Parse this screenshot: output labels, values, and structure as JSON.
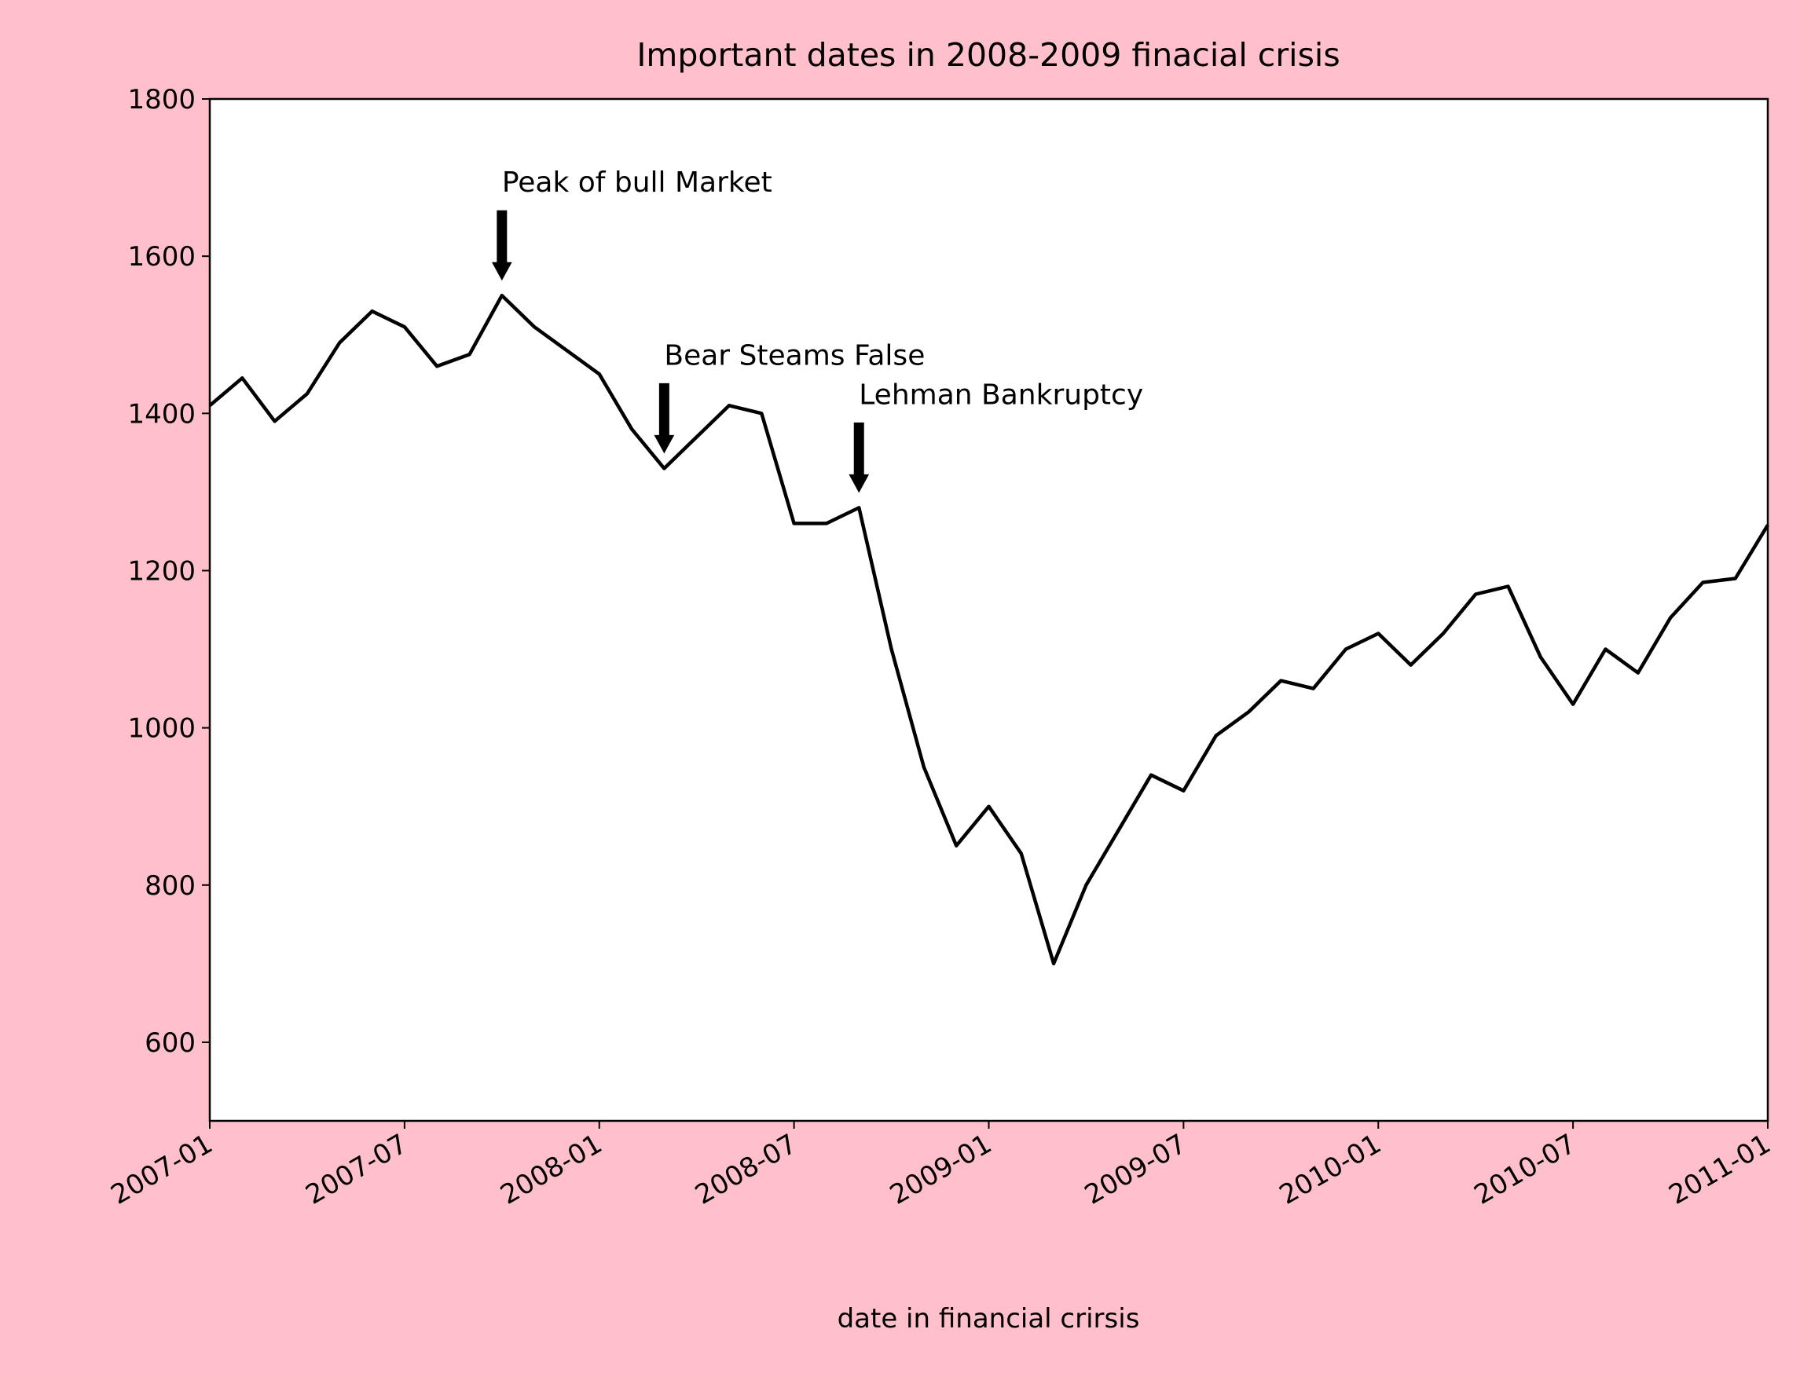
{
  "chart_data": {
    "type": "line",
    "title": "Important dates in 2008-2009 finacial crisis",
    "x_label": "date in financial crirsis",
    "x": [
      "2007-01",
      "2007-02",
      "2007-03",
      "2007-04",
      "2007-05",
      "2007-06",
      "2007-07",
      "2007-08",
      "2007-09",
      "2007-10",
      "2007-11",
      "2007-12",
      "2008-01",
      "2008-02",
      "2008-03",
      "2008-04",
      "2008-05",
      "2008-06",
      "2008-07",
      "2008-08",
      "2008-09",
      "2008-10",
      "2008-11",
      "2008-12",
      "2009-01",
      "2009-02",
      "2009-03",
      "2009-04",
      "2009-05",
      "2009-06",
      "2009-07",
      "2009-08",
      "2009-09",
      "2009-10",
      "2009-11",
      "2009-12",
      "2010-01",
      "2010-02",
      "2010-03",
      "2010-04",
      "2010-05",
      "2010-06",
      "2010-07",
      "2010-08",
      "2010-09",
      "2010-10",
      "2010-11",
      "2010-12",
      "2011-01"
    ],
    "values": [
      1410,
      1445,
      1390,
      1425,
      1490,
      1530,
      1510,
      1460,
      1475,
      1550,
      1510,
      1480,
      1450,
      1380,
      1330,
      1370,
      1410,
      1400,
      1260,
      1260,
      1280,
      1100,
      950,
      850,
      900,
      840,
      700,
      800,
      870,
      940,
      920,
      990,
      1020,
      1060,
      1050,
      1100,
      1120,
      1080,
      1120,
      1170,
      1180,
      1090,
      1030,
      1100,
      1070,
      1140,
      1185,
      1190,
      1258
    ],
    "color": "#000000",
    "xlim": [
      "2007-01",
      "2011-01"
    ],
    "xticks": [
      "2007-01",
      "2007-07",
      "2008-01",
      "2008-07",
      "2009-01",
      "2009-07",
      "2010-01",
      "2010-07",
      "2011-01"
    ],
    "ylim": [
      500,
      1800
    ],
    "yticks": [
      600,
      800,
      1000,
      1200,
      1400,
      1600,
      1800
    ],
    "annotations": [
      {
        "label": "Peak of bull Market",
        "x": "2007-10"
      },
      {
        "label": "Bear Steams False",
        "x": "2008-03"
      },
      {
        "label": "Lehman Bankruptcy",
        "x": "2008-09"
      }
    ]
  }
}
